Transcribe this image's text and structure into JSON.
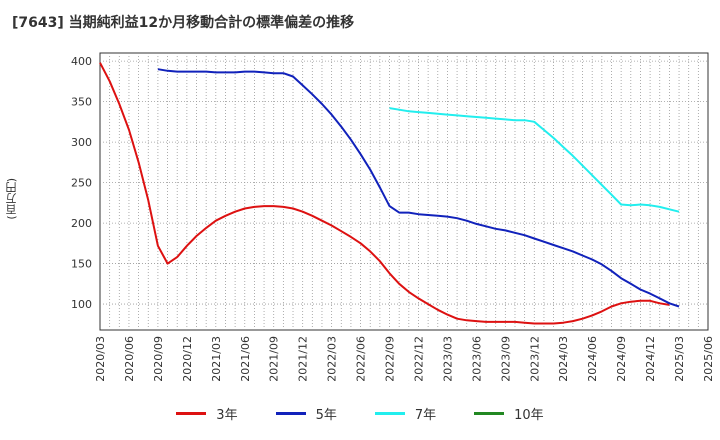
{
  "chart_data": {
    "type": "line",
    "title": "[7643]  当期純利益12か月移動合計の標準偏差の推移",
    "ylabel": "(百万円)",
    "xlabel": "",
    "ylim": [
      68,
      410
    ],
    "yticks": [
      100,
      150,
      200,
      250,
      300,
      350,
      400
    ],
    "xticks": [
      "2020/03",
      "2020/06",
      "2020/09",
      "2020/12",
      "2021/03",
      "2021/06",
      "2021/09",
      "2021/12",
      "2022/03",
      "2022/06",
      "2022/09",
      "2022/12",
      "2023/03",
      "2023/06",
      "2023/09",
      "2023/12",
      "2024/03",
      "2024/06",
      "2024/09",
      "2024/12",
      "2025/03",
      "2025/06"
    ],
    "grid": true,
    "legend_position": "bottom",
    "series": [
      {
        "name": "3年",
        "color": "#dd1111",
        "points": [
          [
            0,
            398
          ],
          [
            1,
            375
          ],
          [
            2,
            347
          ],
          [
            3,
            315
          ],
          [
            4,
            275
          ],
          [
            5,
            228
          ],
          [
            6,
            172
          ],
          [
            7,
            150
          ],
          [
            8,
            158
          ],
          [
            9,
            172
          ],
          [
            10,
            184
          ],
          [
            11,
            194
          ],
          [
            12,
            203
          ],
          [
            13,
            209
          ],
          [
            14,
            214
          ],
          [
            15,
            218
          ],
          [
            16,
            220
          ],
          [
            17,
            221
          ],
          [
            18,
            221
          ],
          [
            19,
            220
          ],
          [
            20,
            218
          ],
          [
            21,
            214
          ],
          [
            22,
            209
          ],
          [
            23,
            203
          ],
          [
            24,
            197
          ],
          [
            25,
            190
          ],
          [
            26,
            183
          ],
          [
            27,
            175
          ],
          [
            28,
            165
          ],
          [
            29,
            153
          ],
          [
            30,
            138
          ],
          [
            31,
            125
          ],
          [
            32,
            115
          ],
          [
            33,
            107
          ],
          [
            34,
            100
          ],
          [
            35,
            93
          ],
          [
            36,
            87
          ],
          [
            37,
            82
          ],
          [
            38,
            80
          ],
          [
            39,
            79
          ],
          [
            40,
            78
          ],
          [
            41,
            78
          ],
          [
            42,
            78
          ],
          [
            43,
            78
          ],
          [
            44,
            77
          ],
          [
            45,
            76
          ],
          [
            46,
            76
          ],
          [
            47,
            76
          ],
          [
            48,
            77
          ],
          [
            49,
            79
          ],
          [
            50,
            82
          ],
          [
            51,
            86
          ],
          [
            52,
            91
          ],
          [
            53,
            97
          ],
          [
            54,
            101
          ],
          [
            55,
            103
          ],
          [
            56,
            104
          ],
          [
            57,
            104
          ],
          [
            58,
            101
          ],
          [
            59,
            99
          ]
        ]
      },
      {
        "name": "5年",
        "color": "#1122bb",
        "points": [
          [
            6,
            390
          ],
          [
            7,
            388
          ],
          [
            8,
            387
          ],
          [
            9,
            387
          ],
          [
            10,
            387
          ],
          [
            11,
            387
          ],
          [
            12,
            386
          ],
          [
            13,
            386
          ],
          [
            14,
            386
          ],
          [
            15,
            387
          ],
          [
            16,
            387
          ],
          [
            17,
            386
          ],
          [
            18,
            385
          ],
          [
            19,
            385
          ],
          [
            20,
            381
          ],
          [
            21,
            370
          ],
          [
            22,
            359
          ],
          [
            23,
            347
          ],
          [
            24,
            334
          ],
          [
            25,
            319
          ],
          [
            26,
            303
          ],
          [
            27,
            285
          ],
          [
            28,
            266
          ],
          [
            29,
            244
          ],
          [
            30,
            221
          ],
          [
            31,
            213
          ],
          [
            32,
            213
          ],
          [
            33,
            211
          ],
          [
            34,
            210
          ],
          [
            35,
            209
          ],
          [
            36,
            208
          ],
          [
            37,
            206
          ],
          [
            38,
            203
          ],
          [
            39,
            199
          ],
          [
            40,
            196
          ],
          [
            41,
            193
          ],
          [
            42,
            191
          ],
          [
            43,
            188
          ],
          [
            44,
            185
          ],
          [
            45,
            181
          ],
          [
            46,
            177
          ],
          [
            47,
            173
          ],
          [
            48,
            169
          ],
          [
            49,
            165
          ],
          [
            50,
            160
          ],
          [
            51,
            155
          ],
          [
            52,
            149
          ],
          [
            53,
            141
          ],
          [
            54,
            132
          ],
          [
            55,
            125
          ],
          [
            56,
            118
          ],
          [
            57,
            113
          ],
          [
            58,
            107
          ],
          [
            59,
            101
          ],
          [
            60,
            97
          ]
        ]
      },
      {
        "name": "7年",
        "color": "#22eeee",
        "points": [
          [
            30,
            342
          ],
          [
            31,
            340
          ],
          [
            32,
            338
          ],
          [
            33,
            337
          ],
          [
            34,
            336
          ],
          [
            35,
            335
          ],
          [
            36,
            334
          ],
          [
            37,
            333
          ],
          [
            38,
            332
          ],
          [
            39,
            331
          ],
          [
            40,
            330
          ],
          [
            41,
            329
          ],
          [
            42,
            328
          ],
          [
            43,
            327
          ],
          [
            44,
            327
          ],
          [
            45,
            325
          ],
          [
            46,
            315
          ],
          [
            47,
            305
          ],
          [
            48,
            294
          ],
          [
            49,
            283
          ],
          [
            50,
            271
          ],
          [
            51,
            259
          ],
          [
            52,
            247
          ],
          [
            53,
            235
          ],
          [
            54,
            223
          ],
          [
            55,
            222
          ],
          [
            56,
            223
          ],
          [
            57,
            222
          ],
          [
            58,
            220
          ],
          [
            59,
            217
          ],
          [
            60,
            214
          ]
        ]
      },
      {
        "name": "10年",
        "color": "#228822",
        "points": []
      }
    ]
  }
}
